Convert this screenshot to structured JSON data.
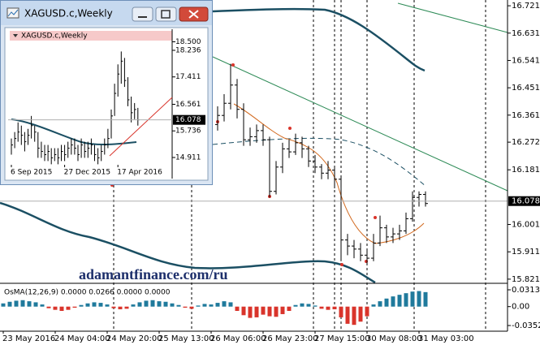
{
  "chart_data": [
    {
      "type": "ohlc",
      "watermark": "adamantfinance.com/ru",
      "categories": [
        "23 May 2016",
        null,
        null,
        null,
        null,
        null,
        null,
        null,
        "24 May 04:00",
        null,
        null,
        null,
        null,
        null,
        null,
        null,
        "24 May 20:00",
        null,
        null,
        null,
        null,
        null,
        null,
        null,
        "25 May 13:00",
        null,
        null,
        null,
        null,
        null,
        null,
        null,
        "26 May 06:00",
        null,
        null,
        null,
        null,
        null,
        null,
        null,
        "26 May 23:00",
        null,
        null,
        null,
        null,
        null,
        null,
        null,
        "27 May 15:00",
        null,
        null,
        null,
        null,
        null,
        null,
        null,
        "30 May 08:00",
        null,
        null,
        null,
        null,
        null,
        null,
        null,
        "31 May 03:00",
        null
      ],
      "open": [
        null,
        null,
        null,
        null,
        null,
        null,
        null,
        null,
        null,
        null,
        null,
        null,
        null,
        null,
        null,
        null,
        null,
        null,
        null,
        null,
        null,
        null,
        null,
        null,
        null,
        null,
        null,
        null,
        null,
        null,
        null,
        null,
        null,
        16.33,
        16.36,
        16.4,
        16.46,
        16.38,
        16.28,
        16.29,
        16.31,
        16.28,
        16.11,
        16.19,
        16.25,
        16.24,
        16.27,
        16.25,
        16.21,
        16.19,
        16.17,
        16.18,
        16.15,
        15.95,
        15.93,
        15.92,
        15.9,
        15.89,
        15.94,
        15.99,
        15.96,
        15.97,
        15.98,
        16.02,
        16.09,
        16.1
      ],
      "high": [
        null,
        null,
        null,
        null,
        null,
        null,
        null,
        null,
        null,
        null,
        null,
        null,
        null,
        null,
        null,
        null,
        null,
        null,
        null,
        null,
        null,
        null,
        null,
        null,
        null,
        null,
        null,
        null,
        null,
        null,
        null,
        null,
        null,
        16.39,
        16.43,
        16.53,
        16.48,
        16.4,
        16.32,
        16.33,
        16.33,
        16.29,
        16.21,
        16.27,
        16.28,
        16.3,
        16.29,
        16.26,
        16.23,
        16.2,
        16.21,
        16.19,
        16.16,
        15.97,
        15.95,
        15.94,
        15.92,
        15.97,
        16.03,
        16.0,
        15.99,
        16.0,
        16.04,
        16.11,
        16.11,
        16.11
      ],
      "low": [
        null,
        null,
        null,
        null,
        null,
        null,
        null,
        null,
        null,
        null,
        null,
        null,
        null,
        null,
        null,
        null,
        null,
        null,
        null,
        null,
        null,
        null,
        null,
        null,
        null,
        null,
        null,
        null,
        null,
        null,
        null,
        null,
        null,
        16.31,
        16.34,
        16.38,
        16.35,
        16.26,
        16.26,
        16.27,
        16.26,
        16.09,
        16.1,
        16.17,
        16.22,
        16.23,
        16.22,
        16.19,
        16.17,
        16.15,
        16.15,
        16.12,
        15.88,
        15.9,
        15.89,
        15.88,
        15.87,
        15.88,
        15.93,
        15.94,
        15.94,
        15.95,
        15.97,
        16.01,
        16.06,
        16.06
      ],
      "close": [
        null,
        null,
        null,
        null,
        null,
        null,
        null,
        null,
        null,
        null,
        null,
        null,
        null,
        null,
        null,
        null,
        null,
        null,
        null,
        null,
        null,
        null,
        null,
        null,
        null,
        null,
        null,
        null,
        null,
        null,
        null,
        null,
        null,
        16.36,
        16.4,
        16.46,
        16.38,
        16.28,
        16.29,
        16.31,
        16.28,
        16.11,
        16.19,
        16.25,
        16.24,
        16.27,
        16.25,
        16.21,
        16.19,
        16.17,
        16.18,
        16.15,
        15.95,
        15.93,
        15.92,
        15.9,
        15.89,
        15.94,
        15.99,
        15.96,
        15.97,
        15.98,
        16.02,
        16.09,
        16.1,
        16.07
      ],
      "color": "#000000",
      "ylim": [
        15.81,
        16.74
      ],
      "yticks": [
        16.721,
        16.631,
        16.541,
        16.451,
        16.361,
        16.272,
        16.181,
        16.001,
        15.911,
        15.821
      ],
      "last_price": 16.078
    },
    {
      "type": "bar",
      "title": "OsMA(12,26,9) 0.0000 0.0266 0.0000 0.0000",
      "values": [
        0.006,
        0.009,
        0.011,
        0.012,
        0.01,
        0.008,
        0.004,
        -0.003,
        -0.006,
        -0.008,
        -0.006,
        -0.002,
        0.003,
        0.006,
        0.008,
        0.007,
        0.004,
        -0.003,
        -0.005,
        -0.004,
        0.004,
        0.008,
        0.011,
        0.012,
        0.01,
        0.009,
        0.006,
        0.003,
        -0.002,
        -0.004,
        0.002,
        0.005,
        0.004,
        0.007,
        0.01,
        0.008,
        -0.008,
        -0.016,
        -0.021,
        -0.02,
        -0.015,
        -0.018,
        -0.019,
        -0.014,
        -0.008,
        0.003,
        0.006,
        0.005,
        0.002,
        -0.004,
        -0.006,
        -0.005,
        -0.02,
        -0.032,
        -0.034,
        -0.028,
        -0.018,
        0.004,
        0.01,
        0.015,
        0.019,
        0.022,
        0.025,
        0.028,
        0.029,
        0.027
      ],
      "positive_color": "#1f7a9c",
      "negative_color": "#d9342b",
      "ylim": [
        -0.0458,
        0.0419
      ],
      "yticks": [
        0.0313,
        {
          "value": 0,
          "label": "0.00"
        },
        -0.0352
      ]
    },
    {
      "type": "hlc",
      "title": "XAGUSD.c,Weekly",
      "label": "XAGUSD.c,Weekly",
      "categories": [
        "6 Sep 2015",
        null,
        null,
        null,
        null,
        null,
        null,
        null,
        null,
        null,
        null,
        null,
        null,
        null,
        null,
        null,
        "27 Dec 2015",
        null,
        null,
        null,
        null,
        null,
        null,
        null,
        null,
        null,
        null,
        null,
        null,
        null,
        null,
        null,
        "17 Apr 2016",
        null,
        null,
        null,
        null,
        null,
        null
      ],
      "high": [
        15.5,
        15.7,
        16.0,
        15.9,
        15.7,
        15.8,
        16.2,
        15.9,
        15.7,
        15.4,
        15.3,
        15.3,
        15.2,
        15.2,
        15.2,
        15.3,
        15.3,
        15.4,
        15.5,
        15.5,
        15.3,
        15.5,
        15.4,
        15.4,
        15.5,
        15.3,
        15.2,
        15.3,
        15.5,
        15.8,
        16.4,
        17.2,
        17.8,
        18.2,
        18.0,
        17.4,
        16.8,
        16.6,
        16.45
      ],
      "low": [
        15.0,
        15.2,
        15.4,
        15.3,
        15.1,
        15.3,
        15.5,
        15.4,
        14.9,
        14.9,
        14.8,
        14.8,
        14.7,
        14.8,
        14.7,
        14.8,
        14.8,
        14.9,
        15.0,
        15.0,
        14.8,
        14.9,
        14.9,
        14.9,
        15.0,
        14.8,
        14.7,
        14.8,
        15.0,
        15.2,
        15.5,
        16.2,
        16.8,
        17.2,
        17.1,
        16.5,
        16.0,
        16.1,
        15.9
      ],
      "close": [
        15.3,
        15.5,
        15.7,
        15.6,
        15.4,
        15.6,
        15.9,
        15.7,
        15.2,
        15.1,
        15.0,
        15.1,
        14.9,
        15.0,
        14.9,
        15.1,
        15.0,
        15.2,
        15.3,
        15.2,
        15.0,
        15.3,
        15.1,
        15.2,
        15.3,
        15.0,
        14.9,
        15.1,
        15.3,
        15.5,
        16.2,
        16.9,
        17.5,
        17.9,
        17.3,
        16.7,
        16.3,
        16.4,
        16.08
      ],
      "color": "#000000",
      "ylim": [
        14.634,
        18.5
      ],
      "yticks": [
        {
          "value": 18.5,
          "label": "18.500"
        },
        18.236,
        17.411,
        16.561,
        15.736,
        14.911
      ],
      "last_price": 16.078
    }
  ]
}
